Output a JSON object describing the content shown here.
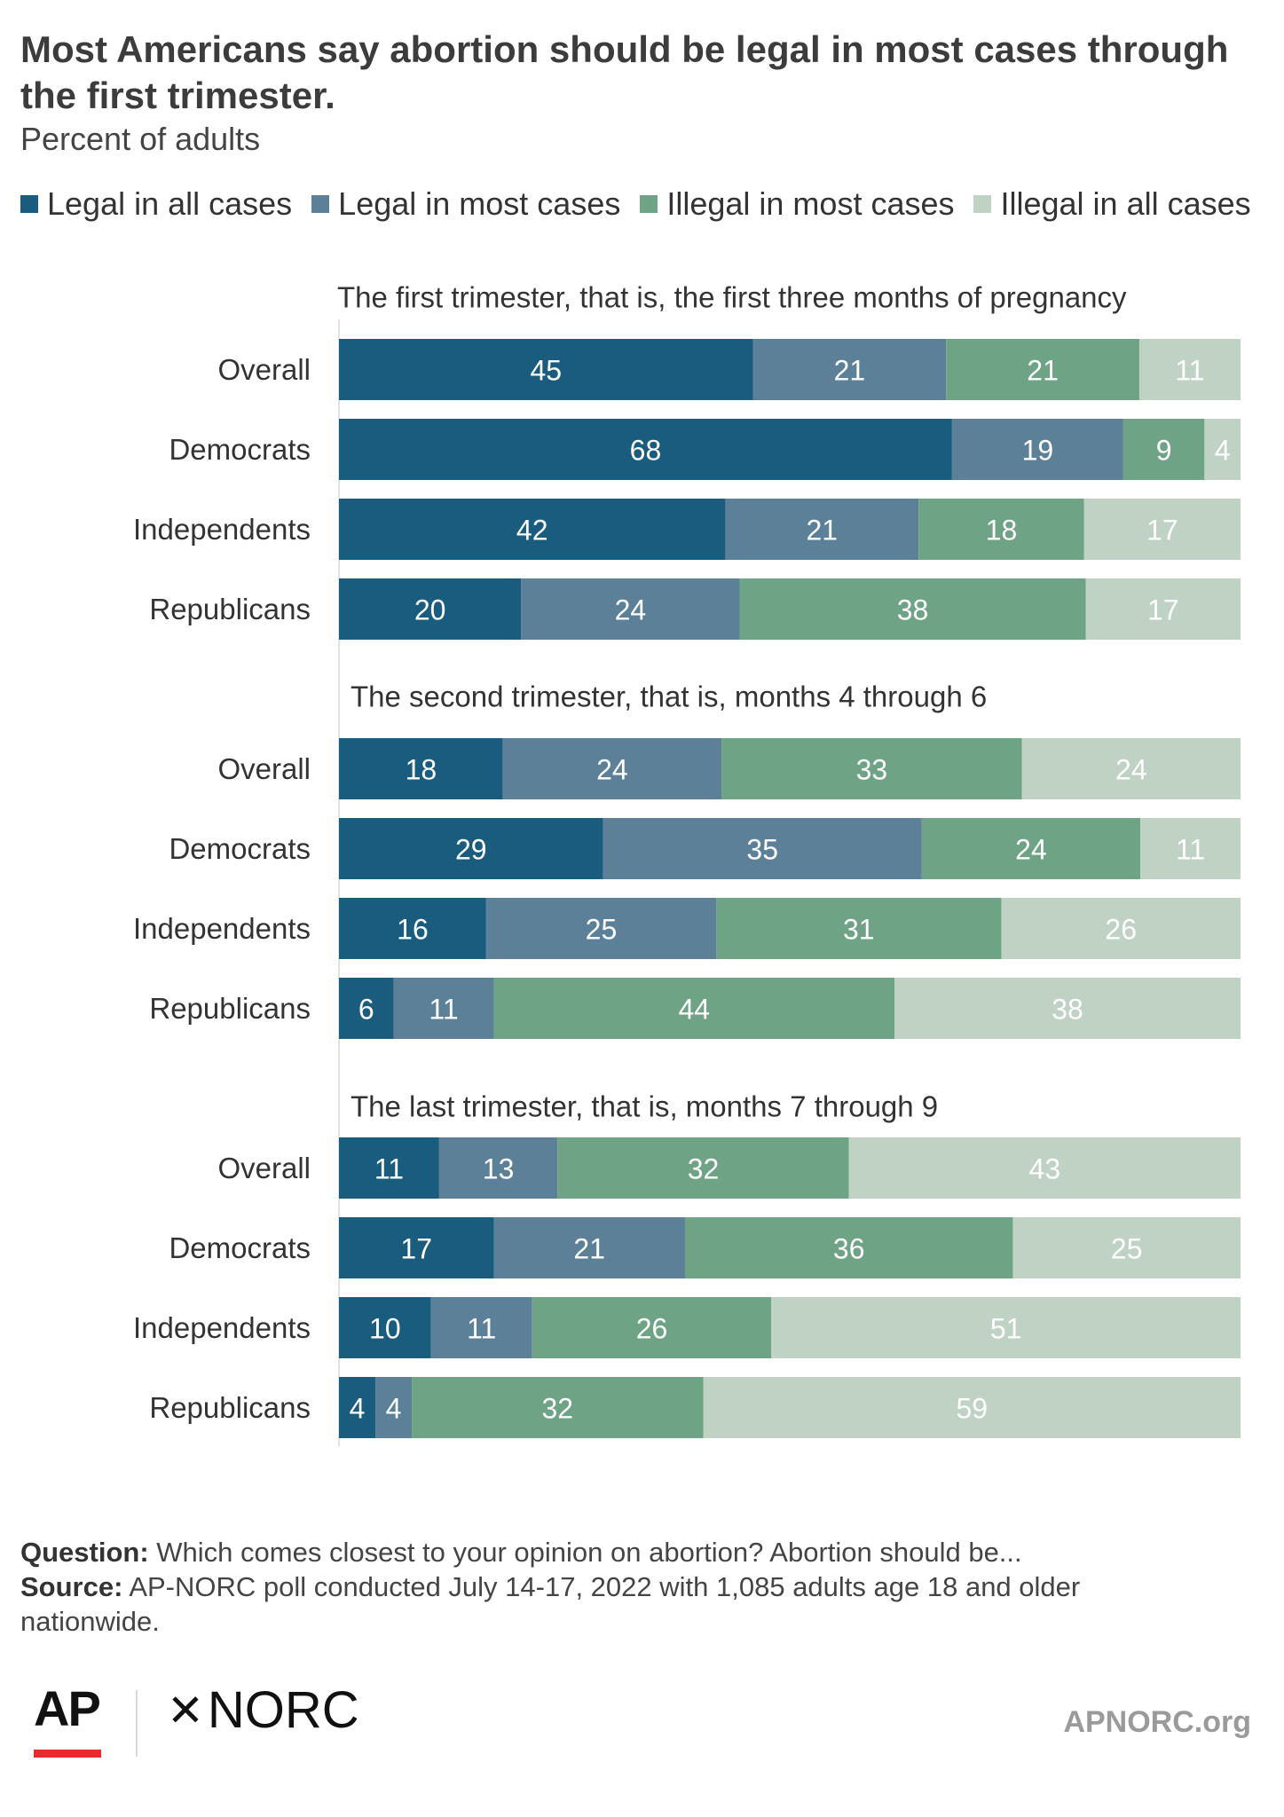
{
  "header": {
    "title": "Most Americans say abortion should be legal in most cases through the first trimester.",
    "subtitle": "Percent of adults"
  },
  "legend": [
    {
      "label": "Legal in all cases",
      "color": "#1a5c7e"
    },
    {
      "label": "Legal in most cases",
      "color": "#5b8097"
    },
    {
      "label": "Illegal in most cases",
      "color": "#6fa386"
    },
    {
      "label": "Illegal in all cases",
      "color": "#bfd2c4"
    }
  ],
  "chart_data": {
    "type": "bar",
    "orientation": "horizontal",
    "stacked": true,
    "series_names": [
      "Legal in all cases",
      "Legal in most cases",
      "Illegal in most cases",
      "Illegal in all cases"
    ],
    "colors": [
      "#1a5c7e",
      "#5b8097",
      "#6fa386",
      "#bfd2c4"
    ],
    "label_colors": [
      "#ffffff",
      "#ffffff",
      "#ffffff",
      "#ffffff"
    ],
    "groups": [
      {
        "title": "The first trimester, that is, the first three months of pregnancy",
        "rows": [
          {
            "label": "Overall",
            "values": [
              45,
              21,
              21,
              11
            ]
          },
          {
            "label": "Democrats",
            "values": [
              68,
              19,
              9,
              4
            ]
          },
          {
            "label": "Independents",
            "values": [
              42,
              21,
              18,
              17
            ]
          },
          {
            "label": "Republicans",
            "values": [
              20,
              24,
              38,
              17
            ]
          }
        ]
      },
      {
        "title": "The second trimester, that is, months 4 through 6",
        "rows": [
          {
            "label": "Overall",
            "values": [
              18,
              24,
              33,
              24
            ]
          },
          {
            "label": "Democrats",
            "values": [
              29,
              35,
              24,
              11
            ]
          },
          {
            "label": "Independents",
            "values": [
              16,
              25,
              31,
              26
            ]
          },
          {
            "label": "Republicans",
            "values": [
              6,
              11,
              44,
              38
            ]
          }
        ]
      },
      {
        "title": "The last trimester, that is, months 7 through 9",
        "rows": [
          {
            "label": "Overall",
            "values": [
              11,
              13,
              32,
              43
            ]
          },
          {
            "label": "Democrats",
            "values": [
              17,
              21,
              36,
              25
            ]
          },
          {
            "label": "Independents",
            "values": [
              10,
              11,
              26,
              51
            ]
          },
          {
            "label": "Republicans",
            "values": [
              4,
              4,
              32,
              59
            ]
          }
        ]
      }
    ]
  },
  "footer": {
    "question_label": "Question:",
    "question_text": "Which comes closest to your opinion on abortion? Abortion should be...",
    "source_label": "Source:",
    "source_text": "AP-NORC poll conducted July 14-17, 2022 with 1,085 adults age 18 and older nationwide."
  },
  "branding": {
    "ap_logo": "AP",
    "norc_logo": "NORC",
    "norc_icon": "asterisk-icon",
    "site": "APNORC.org"
  }
}
